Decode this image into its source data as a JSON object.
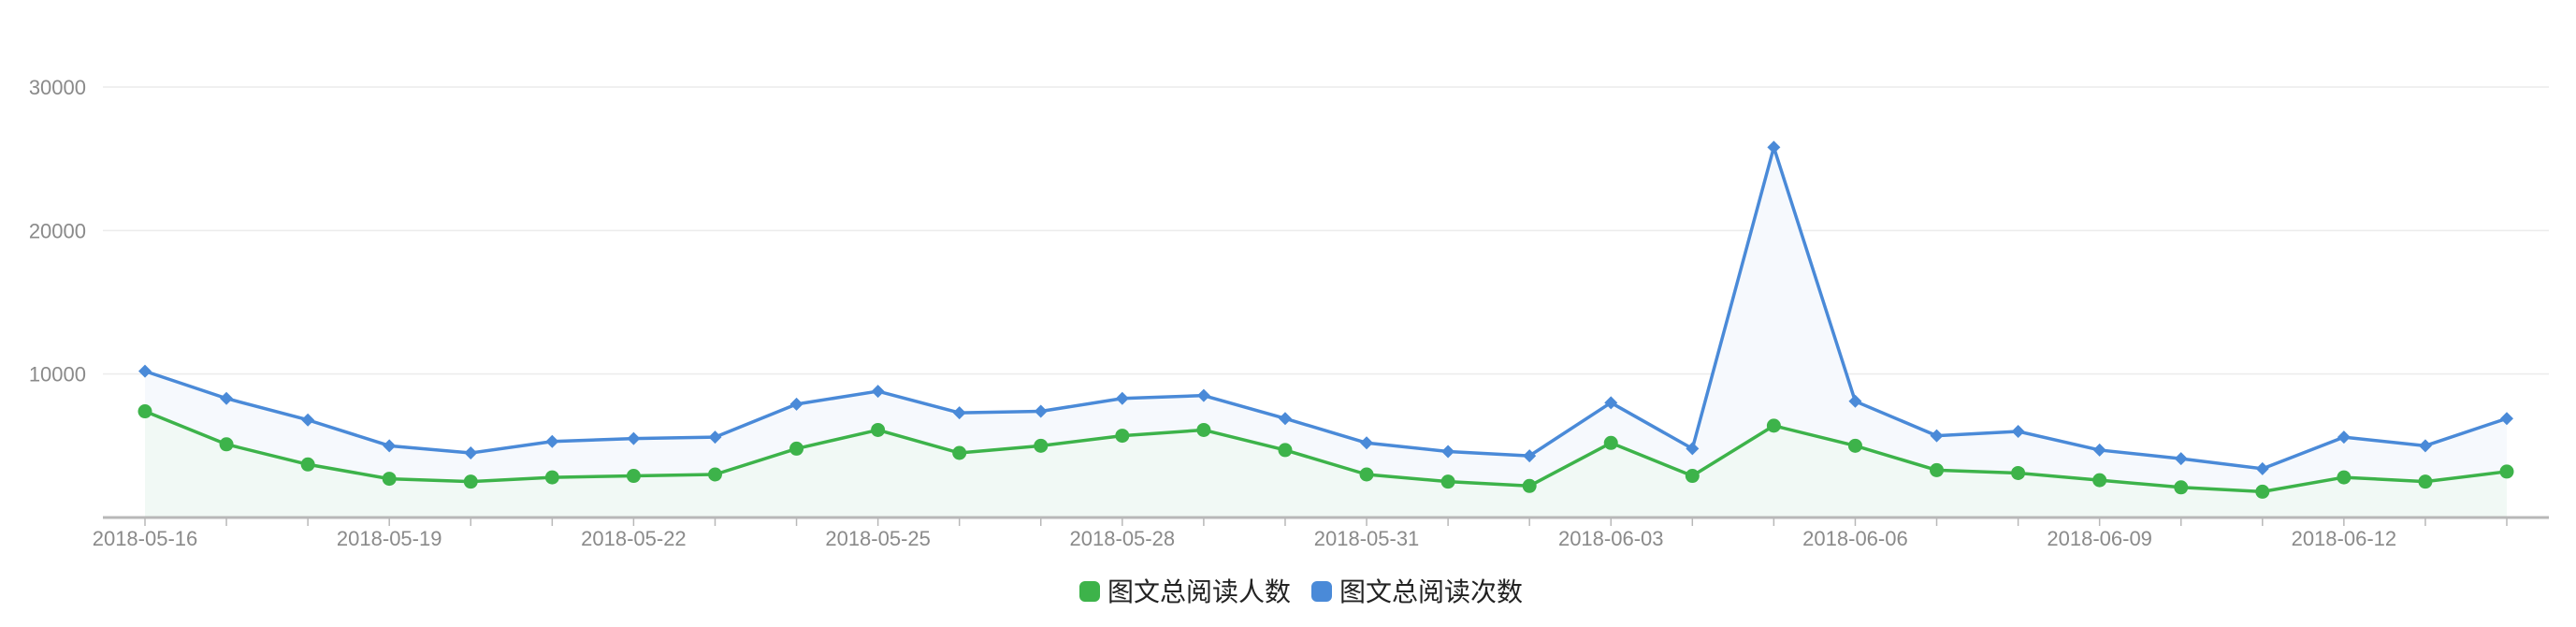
{
  "chart_data": {
    "type": "line",
    "x": [
      "2018-05-16",
      "2018-05-17",
      "2018-05-18",
      "2018-05-19",
      "2018-05-20",
      "2018-05-21",
      "2018-05-22",
      "2018-05-23",
      "2018-05-24",
      "2018-05-25",
      "2018-05-26",
      "2018-05-27",
      "2018-05-28",
      "2018-05-29",
      "2018-05-30",
      "2018-05-31",
      "2018-06-01",
      "2018-06-02",
      "2018-06-03",
      "2018-06-04",
      "2018-06-05",
      "2018-06-06",
      "2018-06-07",
      "2018-06-08",
      "2018-06-09",
      "2018-06-10",
      "2018-06-11",
      "2018-06-12",
      "2018-06-13",
      "2018-06-14"
    ],
    "x_tick_labels": [
      "2018-05-16",
      "2018-05-19",
      "2018-05-22",
      "2018-05-25",
      "2018-05-28",
      "2018-05-31",
      "2018-06-03",
      "2018-06-06",
      "2018-06-09",
      "2018-06-12"
    ],
    "y_ticks": [
      10000,
      20000,
      30000
    ],
    "ylim": [
      0,
      30000
    ],
    "grid": true,
    "legend_position": "bottom-center",
    "series": [
      {
        "name": "图文总阅读人数",
        "color": "#3db34a",
        "marker": "circle",
        "values": [
          7400,
          5100,
          3700,
          2700,
          2500,
          2800,
          2900,
          3000,
          4800,
          6100,
          4500,
          5000,
          5700,
          6100,
          4700,
          3000,
          2500,
          2200,
          5200,
          2900,
          6400,
          5000,
          3300,
          3100,
          2600,
          2100,
          1800,
          2800,
          2500,
          3200
        ]
      },
      {
        "name": "图文总阅读次数",
        "color": "#4a8ad8",
        "marker": "diamond",
        "values": [
          10200,
          8300,
          6800,
          5000,
          4500,
          5300,
          5500,
          5600,
          7900,
          8800,
          7300,
          7400,
          8300,
          8500,
          6900,
          5200,
          4600,
          4300,
          8000,
          4800,
          25800,
          8100,
          5700,
          6000,
          4700,
          4100,
          3400,
          5600,
          5000,
          6900
        ]
      }
    ]
  }
}
